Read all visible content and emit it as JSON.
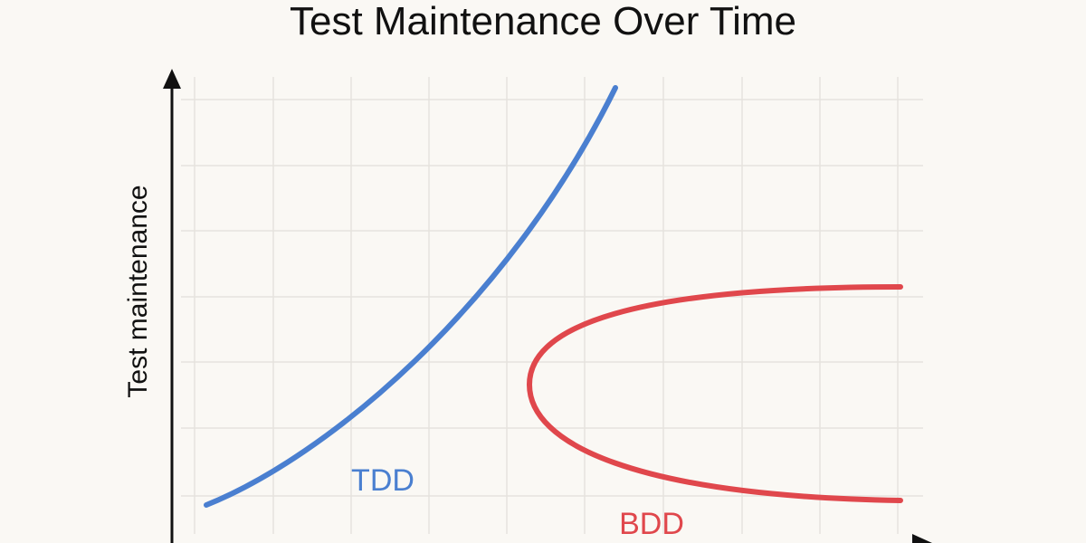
{
  "title": "Test Maintenance Over Time",
  "y_axis_label": "Test maintenance",
  "curves": [
    {
      "label": "TDD"
    },
    {
      "label": "BDD"
    }
  ]
}
